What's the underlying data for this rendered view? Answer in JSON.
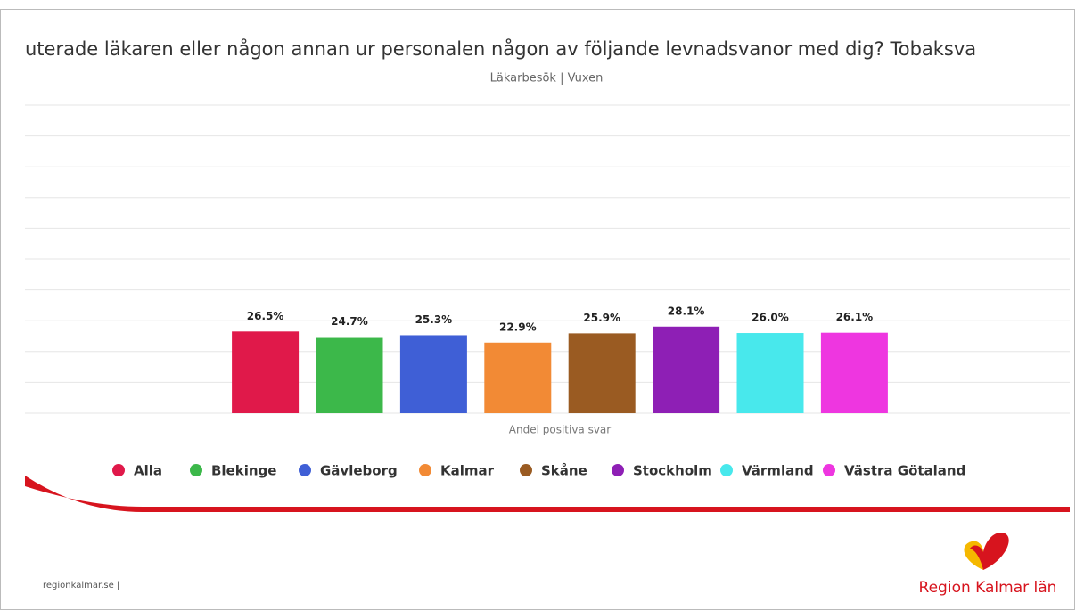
{
  "chart_data": {
    "type": "bar",
    "title": "uterade läkaren eller någon annan ur personalen någon av följande levnadsvanor med dig? Tobaksva",
    "subtitle": "Läkarbesök | Vuxen",
    "categories": [
      "Andel positiva svar"
    ],
    "series": [
      {
        "name": "Alla",
        "color": "#e0194a",
        "values": [
          26.5
        ],
        "value_labels": [
          "26.5%"
        ]
      },
      {
        "name": "Blekinge",
        "color": "#3cb84a",
        "values": [
          24.7
        ],
        "value_labels": [
          "24.7%"
        ]
      },
      {
        "name": "Gävleborg",
        "color": "#3f5fd6",
        "values": [
          25.3
        ],
        "value_labels": [
          "25.3%"
        ]
      },
      {
        "name": "Kalmar",
        "color": "#f28a35",
        "values": [
          22.9
        ],
        "value_labels": [
          "22.9%"
        ]
      },
      {
        "name": "Skåne",
        "color": "#9a5b22",
        "values": [
          25.9
        ],
        "value_labels": [
          "25.9%"
        ]
      },
      {
        "name": "Stockholm",
        "color": "#8e1fb5",
        "values": [
          28.1
        ],
        "value_labels": [
          "28.1%"
        ]
      },
      {
        "name": "Värmland",
        "color": "#48e8ec",
        "values": [
          26.0
        ],
        "value_labels": [
          "26.0%"
        ]
      },
      {
        "name": "Västra Götaland",
        "color": "#ee36e0",
        "values": [
          26.1
        ],
        "value_labels": [
          "26.1%"
        ]
      }
    ],
    "ylim": [
      0,
      100
    ],
    "yticks": [
      0,
      10,
      20,
      30,
      40,
      50,
      60,
      70,
      80,
      90,
      100
    ],
    "grid": true,
    "legend": "bottom"
  },
  "footer": {
    "site": "regionkalmar.se  |",
    "brand": "Region Kalmar län"
  }
}
